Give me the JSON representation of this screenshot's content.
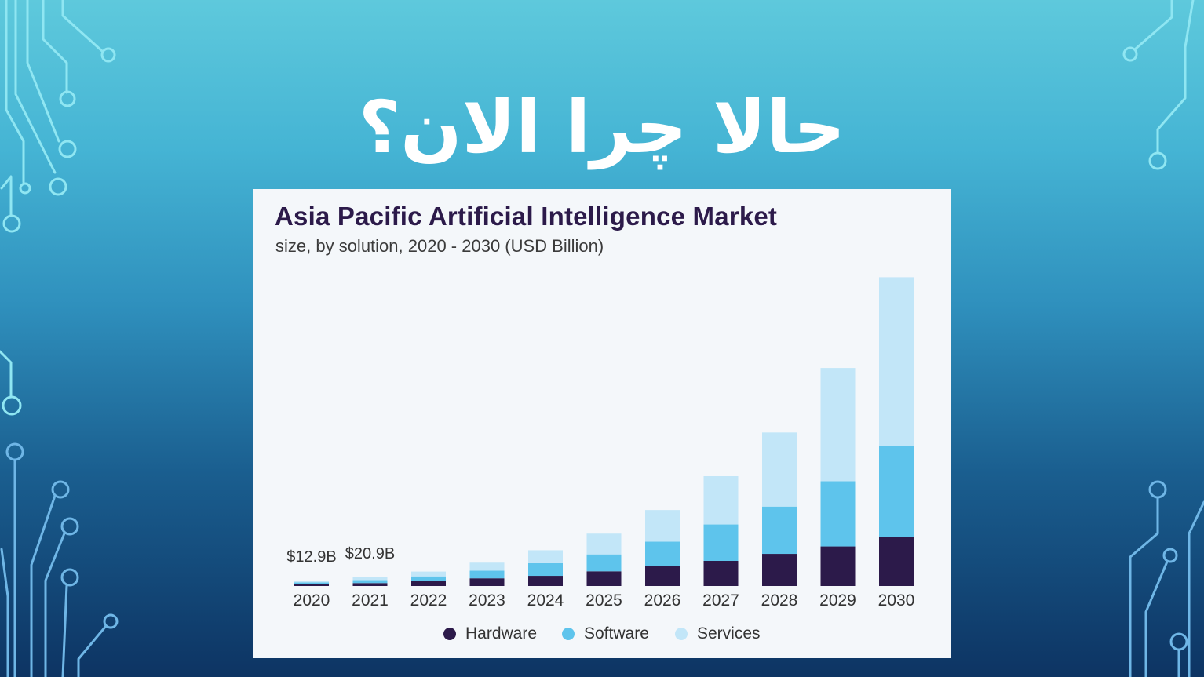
{
  "slide": {
    "title": "حالا چرا الان؟"
  },
  "chart_data": {
    "type": "bar",
    "stacked": true,
    "title": "Asia Pacific Artificial Intelligence Market",
    "subtitle": "size, by solution, 2020 - 2030 (USD Billion)",
    "xlabel": "",
    "ylabel": "",
    "categories": [
      "2020",
      "2021",
      "2022",
      "2023",
      "2024",
      "2025",
      "2026",
      "2027",
      "2028",
      "2029",
      "2030"
    ],
    "series": [
      {
        "name": "Hardware",
        "color": "#2c1a4a",
        "values": [
          4.3,
          7.0,
          11.5,
          18.4,
          24.3,
          35.1,
          47.9,
          60.0,
          76.8,
          94.6,
          117.7
        ]
      },
      {
        "name": "Software",
        "color": "#5ec4ec",
        "values": [
          4.3,
          7.0,
          11.5,
          18.4,
          30.2,
          40.5,
          58.0,
          87.1,
          113.1,
          155.8,
          216.2
        ]
      },
      {
        "name": "Services",
        "color": "#c2e6f8",
        "values": [
          4.3,
          6.9,
          11.5,
          19.0,
          30.9,
          49.6,
          75.7,
          115.4,
          177.0,
          270.7,
          404.1
        ]
      }
    ],
    "data_labels": [
      {
        "category": "2020",
        "text": "$12.9B"
      },
      {
        "category": "2021",
        "text": "$20.9B"
      }
    ],
    "ylim": [
      0,
      750
    ],
    "grid": false,
    "legend_position": "bottom"
  }
}
